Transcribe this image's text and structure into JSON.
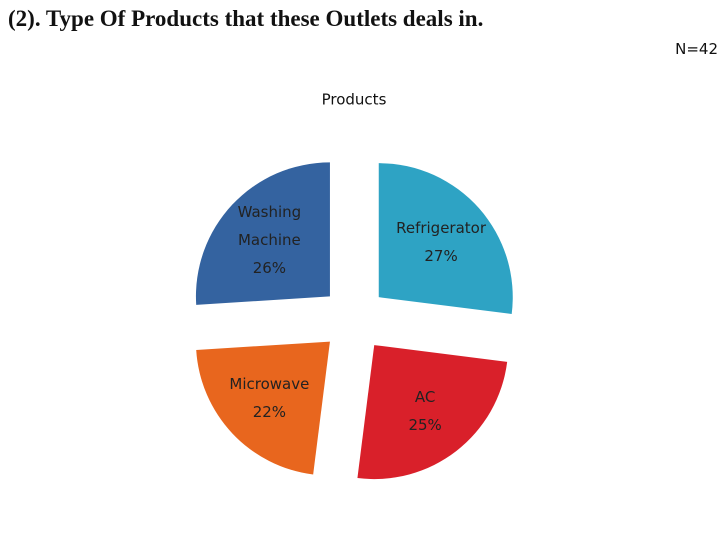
{
  "heading": "(2). Type Of Products that these Outlets deals in.",
  "note": "N=42",
  "chart_data": {
    "type": "pie",
    "title": "Products",
    "categories": [
      "Refrigerator",
      "AC",
      "Microwave",
      "Washing Machine"
    ],
    "values": [
      27,
      25,
      22,
      26
    ],
    "value_labels": [
      "27%",
      "25%",
      "22%",
      "26%"
    ],
    "colors": [
      "#2ea3c4",
      "#d9202a",
      "#e8661e",
      "#3463a0"
    ]
  }
}
